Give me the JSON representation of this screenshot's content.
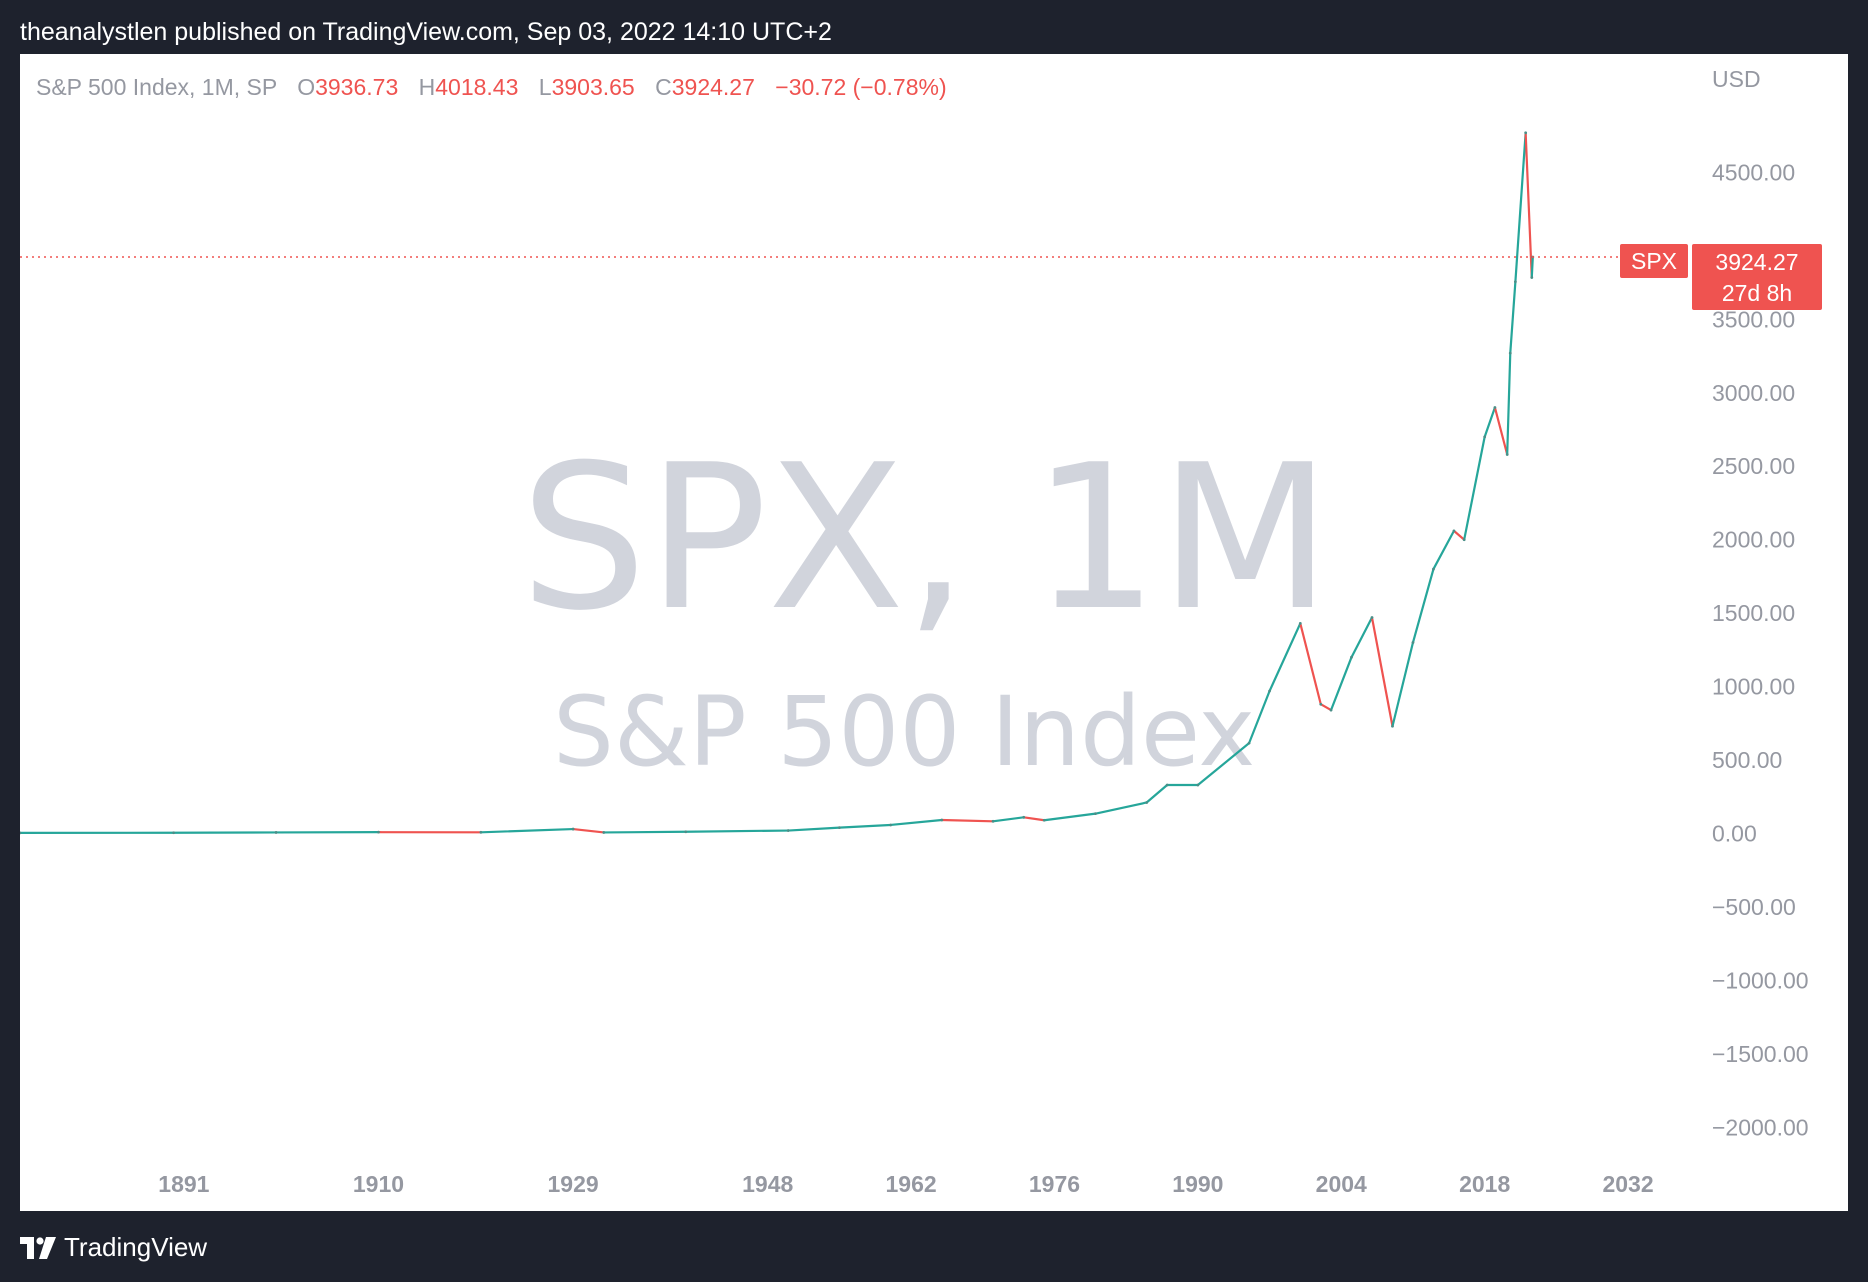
{
  "publisher_line": "theanalystlen published on TradingView.com, Sep 03, 2022 14:10 UTC+2",
  "legend": {
    "symbol_desc": "S&P 500 Index, 1M, SP",
    "open_label": "O",
    "open": "3936.73",
    "high_label": "H",
    "high": "4018.43",
    "low_label": "L",
    "low": "3903.65",
    "close_label": "C",
    "close": "3924.27",
    "change": "−30.72 (−0.78%)"
  },
  "currency": "USD",
  "watermark": {
    "symbol": "SPX, 1M",
    "name": "S&P 500 Index"
  },
  "last_price": {
    "symbol": "SPX",
    "value": "3924.27",
    "countdown": "27d 8h"
  },
  "footer": {
    "brand": "TradingView"
  },
  "colors": {
    "up": "#26a69a",
    "down": "#ef5350",
    "axis_text": "#9598a1",
    "watermark": "#d1d4dc"
  },
  "chart_data": {
    "type": "line",
    "title": "",
    "xlabel": "",
    "ylabel": "",
    "ylim": [
      -2250,
      5000
    ],
    "xlim": [
      1875,
      2040
    ],
    "y_ticks": [
      "−2000.00",
      "−1500.00",
      "−1000.00",
      "−500.00",
      "0.00",
      "500.00",
      "1000.00",
      "1500.00",
      "2000.00",
      "2500.00",
      "3000.00",
      "3500.00",
      "4500.00"
    ],
    "y_tick_values": [
      -2000,
      -1500,
      -1000,
      -500,
      0,
      500,
      1000,
      1500,
      2000,
      2500,
      3000,
      3500,
      4500
    ],
    "x_ticks": [
      "1891",
      "1910",
      "1929",
      "1948",
      "1962",
      "1976",
      "1990",
      "2004",
      "2018",
      "2032"
    ],
    "x_tick_values": [
      1891,
      1910,
      1929,
      1948,
      1962,
      1976,
      1990,
      2004,
      2018,
      2032
    ],
    "last_value": 3924.27,
    "series": [
      {
        "x": [
          1875,
          1890,
          1900,
          1910,
          1920,
          1929,
          1932,
          1940,
          1950,
          1955,
          1960,
          1965,
          1970,
          1973,
          1975,
          1980,
          1985,
          1987,
          1990,
          1995,
          1997,
          2000,
          2002,
          2003,
          2005,
          2007,
          2009,
          2011,
          2013,
          2015,
          2016,
          2018,
          2019,
          2020.2,
          2020.5,
          2021,
          2022,
          2022.6,
          2022.7
        ],
        "y": [
          4,
          5,
          7,
          9,
          8,
          30,
          7,
          12,
          20,
          40,
          58,
          92,
          83,
          110,
          90,
          135,
          211,
          330,
          330,
          615,
          970,
          1430,
          880,
          840,
          1200,
          1470,
          730,
          1300,
          1800,
          2060,
          2000,
          2700,
          2900,
          2580,
          3270,
          3756,
          4770,
          3785,
          3924.27
        ]
      }
    ]
  }
}
